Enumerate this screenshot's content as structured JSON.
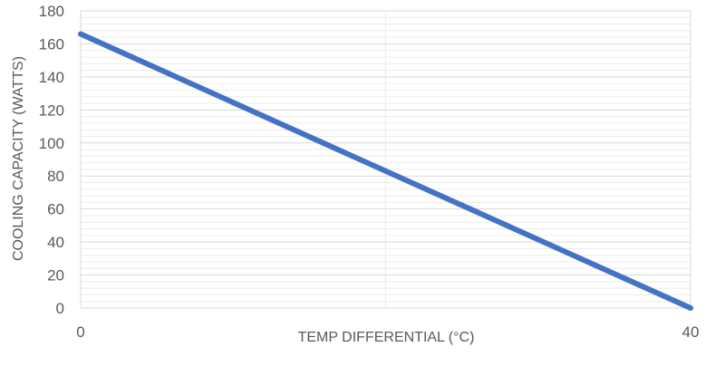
{
  "chart_data": {
    "type": "line",
    "title": "",
    "xlabel": "TEMP DIFFERENTIAL (°C)",
    "ylabel": "COOLING CAPACITY (WATTS)",
    "xlim": [
      0,
      40
    ],
    "ylim": [
      0,
      180
    ],
    "x_ticks": [
      0,
      40
    ],
    "y_ticks": [
      0,
      20,
      40,
      60,
      80,
      100,
      120,
      140,
      160,
      180
    ],
    "x_tick_labels": [
      "0",
      "40"
    ],
    "y_tick_labels": [
      "0",
      "20",
      "40",
      "60",
      "80",
      "100",
      "120",
      "140",
      "160",
      "180"
    ],
    "grid": true,
    "series": [
      {
        "x": [
          0,
          40
        ],
        "y": [
          166,
          0
        ],
        "color": "#4472C4"
      }
    ]
  }
}
